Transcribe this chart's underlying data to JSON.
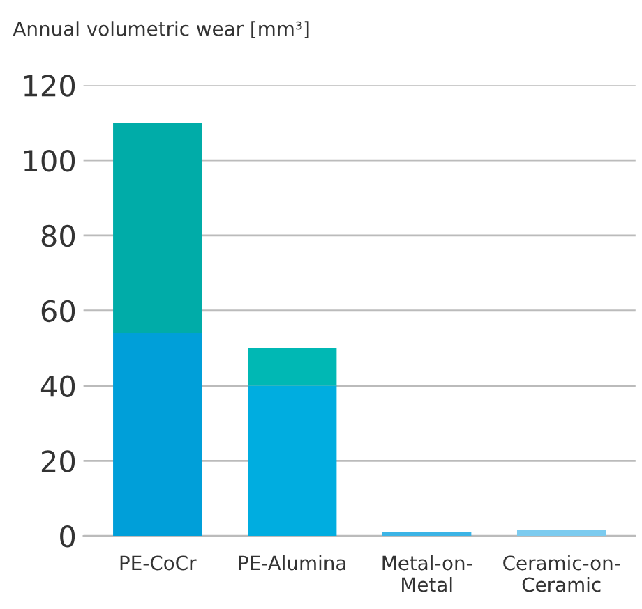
{
  "chart_data": {
    "type": "bar",
    "stacked": true,
    "ylabel": "Annual volumetric wear [mm³]",
    "categories": [
      "PE-CoCr",
      "PE-Alumina",
      "Metal-on-\nMetal",
      "Ceramic-on-\nCeramic"
    ],
    "series": [
      {
        "colors": [
          "#009fd9",
          "#00ade0",
          "#3bb4e6",
          "#7ccbef"
        ],
        "values": [
          54,
          40,
          1,
          1.5
        ]
      },
      {
        "colors": [
          "#00aca8",
          "#00b8b4",
          "#00b8b4",
          "#00b8b4"
        ],
        "values": [
          56,
          10,
          null,
          null
        ]
      }
    ],
    "ylim": [
      0,
      120
    ],
    "yticks": [
      0,
      20,
      40,
      60,
      80,
      100,
      120
    ],
    "grid": "y",
    "legend": false
  }
}
